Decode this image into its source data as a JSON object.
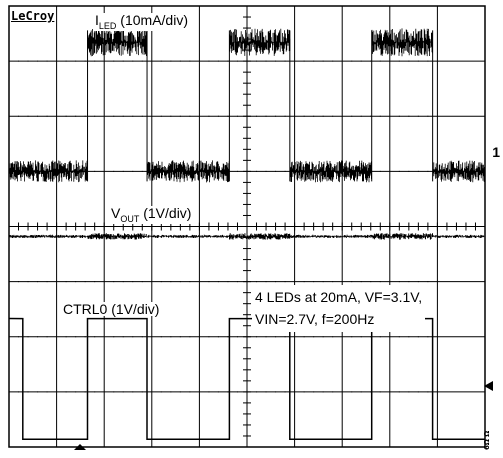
{
  "brand": "LeCroy",
  "channel_marker": "1",
  "figure_id": "6Ω Ω",
  "annotation_lines": [
    "4 LEDs at 20mA, VF=3.1V,",
    "VIN=2.7V, f=200Hz"
  ],
  "chart_data": {
    "type": "line",
    "grid": true,
    "xlim": [
      0,
      10
    ],
    "ylim": [
      -4,
      4
    ],
    "x_divisions": 10,
    "y_divisions": 8,
    "series": [
      {
        "name": "I",
        "name_sub": "LED",
        "name_suffix": " (10mA/div)",
        "edges_div": [
          1.65,
          2.9,
          4.63,
          5.9,
          7.62,
          8.9
        ],
        "phase_at_start": "low",
        "high_level_div": 3.34,
        "low_level_div": 1.0
      },
      {
        "name": "V",
        "name_sub": "OUT",
        "name_suffix": " (1V/div)",
        "edges_div": [
          1.65,
          2.9,
          4.63,
          5.9,
          7.62,
          8.9
        ],
        "phase_at_start": "low",
        "level_div": -0.18
      },
      {
        "name": "CTRL0 (1V/div)",
        "edges_div": [
          0.29,
          1.65,
          2.9,
          4.63,
          5.9,
          7.62,
          8.9
        ],
        "phase_at_start": "high",
        "high_level_div": -1.67,
        "low_level_div": -3.86
      }
    ]
  }
}
